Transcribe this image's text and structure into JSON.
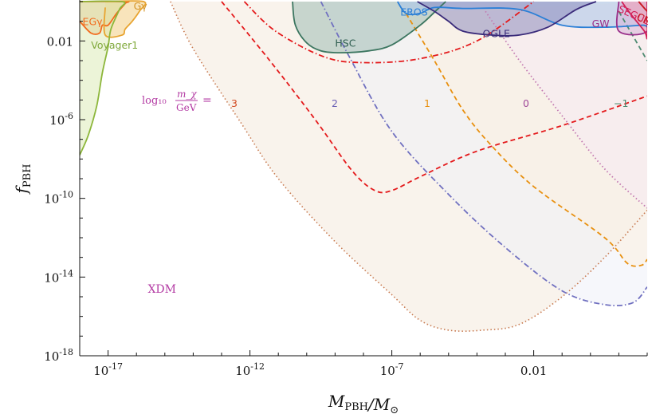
{
  "chart_data": {
    "type": "line",
    "title": "",
    "xlabel": "M_PBH/M_⊙",
    "ylabel": "f_PBH",
    "xscale": "log",
    "yscale": "log",
    "xlim_log10": [
      -18,
      2
    ],
    "ylim_log10": [
      -18,
      0
    ],
    "grid": false,
    "x_ticks": [
      {
        "label": "10",
        "sup": "-17",
        "log10": -17
      },
      {
        "label": "10",
        "sup": "-12",
        "log10": -12
      },
      {
        "label": "10",
        "sup": "-7",
        "log10": -7
      },
      {
        "label": "0.01",
        "sup": "",
        "log10": -2
      }
    ],
    "y_ticks": [
      {
        "label": "0.01",
        "sup": "",
        "log10": -2
      },
      {
        "label": "10",
        "sup": "-6",
        "log10": -6
      },
      {
        "label": "10",
        "sup": "-10",
        "log10": -10
      },
      {
        "label": "10",
        "sup": "-14",
        "log10": -14
      },
      {
        "label": "10",
        "sup": "-18",
        "log10": -18
      }
    ],
    "constraints": [
      {
        "name": "EGγ",
        "color": "#f26b1d",
        "fill": "#e8b878",
        "points": [
          [
            -18,
            -1.0
          ],
          [
            -17.6,
            -1.6
          ],
          [
            -17.3,
            -1.6
          ],
          [
            -17.2,
            -1.2
          ],
          [
            -17.0,
            -1.2
          ],
          [
            -16.7,
            -0.6
          ],
          [
            -16.4,
            -0.1
          ],
          [
            -16.4,
            0
          ],
          [
            -18,
            0
          ]
        ]
      },
      {
        "name": "Gγ",
        "color": "#e8a430",
        "fill": "#f3cd84",
        "points": [
          [
            -17.1,
            -0.3
          ],
          [
            -17.1,
            -1.7
          ],
          [
            -16.5,
            -1.7
          ],
          [
            -16.4,
            -1.4
          ],
          [
            -16.15,
            -1.0
          ],
          [
            -15.9,
            -0.5
          ],
          [
            -15.75,
            0
          ],
          [
            -17.1,
            0
          ]
        ]
      },
      {
        "name": "Voyager1",
        "color": "#8cb63a",
        "fill": "#dcebb8",
        "points": [
          [
            -18,
            -7.8
          ],
          [
            -17.7,
            -6.8
          ],
          [
            -17.4,
            -5.3
          ],
          [
            -17.2,
            -3.6
          ],
          [
            -17.0,
            -2.3
          ],
          [
            -16.9,
            -1.4
          ],
          [
            -16.6,
            -0.4
          ],
          [
            -16.5,
            0
          ],
          [
            -18,
            0
          ]
        ]
      },
      {
        "name": "HSC",
        "color": "#3c7660",
        "fill": "#9fbbb4",
        "points": [
          [
            -10.5,
            0
          ],
          [
            -10.4,
            -1.2
          ],
          [
            -10.0,
            -2.1
          ],
          [
            -9.5,
            -2.5
          ],
          [
            -8.8,
            -2.6
          ],
          [
            -7.8,
            -2.5
          ],
          [
            -7.0,
            -2.2
          ],
          [
            -6.0,
            -1.2
          ],
          [
            -5.4,
            -0.4
          ],
          [
            -5.1,
            0
          ]
        ]
      },
      {
        "name": "EROS",
        "color": "#2b7fd6",
        "fill": "#a9c5ea",
        "points": [
          [
            -6.8,
            0
          ],
          [
            -6.5,
            -0.6
          ],
          [
            -6.0,
            -0.6
          ],
          [
            -5.5,
            -0.3
          ],
          [
            -4.5,
            -0.35
          ],
          [
            -2.5,
            -0.4
          ],
          [
            -1.0,
            -1.2
          ],
          [
            0.5,
            -1.3
          ],
          [
            1.8,
            -1.2
          ],
          [
            2.0,
            -1.2
          ],
          [
            2.0,
            0
          ]
        ]
      },
      {
        "name": "OGLE",
        "color": "#3a2b7a",
        "fill": "#8e8dbd",
        "points": [
          [
            -6.1,
            0
          ],
          [
            -5.5,
            -0.5
          ],
          [
            -5.0,
            -1.0
          ],
          [
            -4.5,
            -1.5
          ],
          [
            -3.5,
            -1.7
          ],
          [
            -2.5,
            -1.7
          ],
          [
            -1.5,
            -1.3
          ],
          [
            -0.5,
            -0.4
          ],
          [
            0.2,
            0
          ]
        ]
      },
      {
        "name": "GW",
        "color": "#9a2f8a",
        "fill": "#d8b5d9",
        "points": [
          [
            1.0,
            0
          ],
          [
            1.0,
            -1.5
          ],
          [
            2.0,
            -1.5
          ],
          [
            2.0,
            0
          ]
        ]
      },
      {
        "name": "SEGUE",
        "color": "#d11f57",
        "fill": "#f2a0b6",
        "points": [
          [
            1.1,
            0
          ],
          [
            1.4,
            -0.6
          ],
          [
            1.9,
            -1.5
          ],
          [
            2.0,
            -1.8
          ],
          [
            2.0,
            0
          ]
        ]
      },
      {
        "name": "CMB",
        "color": "#c8161e",
        "fill": "none",
        "points": [
          [
            1.7,
            0
          ],
          [
            2.0,
            -0.5
          ]
        ]
      }
    ],
    "xdm_curves": [
      {
        "name": "3",
        "color": "#e41a1c",
        "dash": "6,4",
        "points": [
          [
            -13,
            0
          ],
          [
            -11.3,
            -3.0
          ],
          [
            -9.7,
            -6.0
          ],
          [
            -8.4,
            -8.6
          ],
          [
            -7.6,
            -9.6
          ],
          [
            -7.0,
            -9.6
          ],
          [
            -6.0,
            -8.9
          ],
          [
            -4.0,
            -7.6
          ],
          [
            -1.0,
            -6.3
          ],
          [
            2.0,
            -4.8
          ]
        ]
      },
      {
        "name": "3",
        "color": "#e41a1c",
        "dash": "7,3,1.5,3",
        "points": [
          [
            -12.2,
            0
          ],
          [
            -11.1,
            -1.5
          ],
          [
            -9.4,
            -2.8
          ],
          [
            -8.0,
            -3.1
          ],
          [
            -6.0,
            -2.9
          ],
          [
            -4.0,
            -2.0
          ],
          [
            -2.0,
            0
          ]
        ]
      },
      {
        "name": "2",
        "color": "#7070c0",
        "dash": "7,3,1.5,3",
        "points": [
          [
            -9.5,
            0
          ],
          [
            -8.5,
            -2.8
          ],
          [
            -7.0,
            -6.6
          ],
          [
            -5.0,
            -9.8
          ],
          [
            -3.0,
            -12.5
          ],
          [
            -1.0,
            -14.7
          ],
          [
            0.5,
            -15.4
          ],
          [
            1.5,
            -15.3
          ],
          [
            2.0,
            -14.5
          ]
        ]
      },
      {
        "name": "1",
        "color": "#e8900f",
        "dash": "6,4",
        "points": [
          [
            -6.5,
            -0.6
          ],
          [
            -5.5,
            -3.0
          ],
          [
            -4.5,
            -5.5
          ],
          [
            -3.5,
            -7.3
          ],
          [
            -2.0,
            -9.4
          ],
          [
            0.5,
            -12.0
          ],
          [
            1.3,
            -13.3
          ],
          [
            1.8,
            -13.4
          ],
          [
            2.0,
            -13.1
          ]
        ]
      },
      {
        "name": "0",
        "color": "#c279b0",
        "dash": "1.5,3",
        "points": [
          [
            -3.7,
            -0.5
          ],
          [
            -2.5,
            -3.0
          ],
          [
            -1.0,
            -5.8
          ],
          [
            0.5,
            -8.5
          ],
          [
            2.0,
            -10.5
          ]
        ]
      },
      {
        "name": "−1",
        "color": "#4c8a70",
        "dash": "6,4",
        "points": [
          [
            1.0,
            -0.5
          ],
          [
            2.0,
            -3.0
          ]
        ]
      }
    ],
    "bounds": [
      {
        "name": "3",
        "color": "#c87a50",
        "dash": "1.5,3",
        "points": [
          [
            -14.8,
            0
          ],
          [
            -14.0,
            -2.4
          ],
          [
            -12.3,
            -6.2
          ],
          [
            -11.0,
            -9.0
          ],
          [
            -9.0,
            -12.2
          ],
          [
            -7.0,
            -14.9
          ],
          [
            -6.0,
            -16.2
          ],
          [
            -5.0,
            -16.7
          ],
          [
            -3.8,
            -16.7
          ],
          [
            -2.5,
            -16.4
          ],
          [
            -1.0,
            -15.0
          ],
          [
            0.5,
            -13.0
          ],
          [
            2.0,
            -10.6
          ]
        ]
      }
    ],
    "labels": [
      {
        "text": "EGγ",
        "x": -17.9,
        "y": -1.2,
        "color": "#f26b1d"
      },
      {
        "text": "Gγ",
        "x": -16.1,
        "y": -0.4,
        "color": "#d4952a"
      },
      {
        "text": "Voyager1",
        "x": -17.6,
        "y": -2.4,
        "color": "#7fa83a"
      },
      {
        "text": "HSC",
        "x": -9.0,
        "y": -2.3,
        "color": "#2f5e50"
      },
      {
        "text": "EROS",
        "x": -6.7,
        "y": -0.7,
        "color": "#2b7fd6"
      },
      {
        "text": "OGLE",
        "x": -3.8,
        "y": -1.8,
        "color": "#3a2b7a"
      },
      {
        "text": "GW",
        "x": 0.05,
        "y": -1.3,
        "color": "#9a2f8a"
      },
      {
        "text": "SEGUE",
        "x": 0.95,
        "y": -0.5,
        "color": "#d11f57"
      },
      {
        "text": "CMB",
        "x": 1.6,
        "y": -0.9,
        "color": "#c8161e"
      },
      {
        "text": "XDM",
        "x": -15.6,
        "y": -14.8,
        "color": "#b33aa3"
      }
    ],
    "legend_prefix": {
      "text": "log₁₀",
      "numerator": "m_χ",
      "denominator": "GeV",
      "eq": "=",
      "color": "#b33aa3"
    },
    "legend_values": [
      {
        "text": "3",
        "color": "#d24b22"
      },
      {
        "text": "2",
        "color": "#6a5fb5"
      },
      {
        "text": "1",
        "color": "#e8900f"
      },
      {
        "text": "0",
        "color": "#a04a9a"
      },
      {
        "text": "−1",
        "color": "#4c8a70"
      }
    ]
  }
}
